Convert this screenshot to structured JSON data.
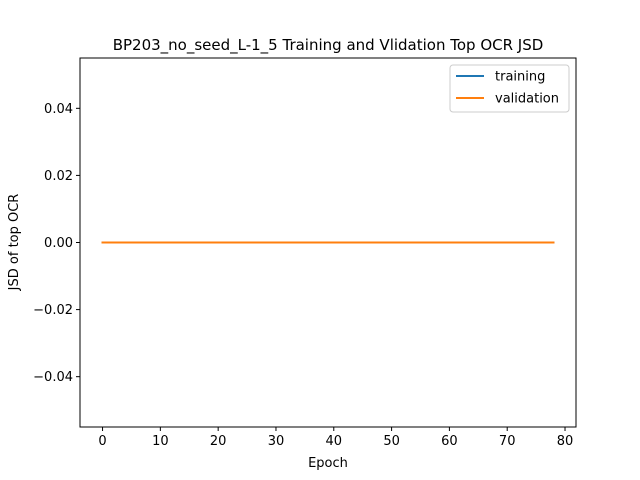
{
  "chart_data": {
    "type": "line",
    "title": "BP203_no_seed_L-1_5 Training and Vlidation Top OCR JSD",
    "xlabel": "Epoch",
    "ylabel": "JSD of top OCR",
    "xlim": [
      -3.9,
      81.9
    ],
    "ylim": [
      -0.055,
      0.055
    ],
    "xticks": [
      0,
      10,
      20,
      30,
      40,
      50,
      60,
      70,
      80
    ],
    "xtick_labels": [
      "0",
      "10",
      "20",
      "30",
      "40",
      "50",
      "60",
      "70",
      "80"
    ],
    "yticks": [
      -0.04,
      -0.02,
      0.0,
      0.02,
      0.04
    ],
    "ytick_labels": [
      "−0.04",
      "−0.02",
      "0.00",
      "0.02",
      "0.04"
    ],
    "grid": false,
    "legend_position": "upper right",
    "series": [
      {
        "name": "training",
        "color": "#1f77b4",
        "x_start": 0,
        "x_end": 78,
        "value": 0.0
      },
      {
        "name": "validation",
        "color": "#ff7f0e",
        "x_start": 0,
        "x_end": 78,
        "value": 0.0
      }
    ]
  }
}
